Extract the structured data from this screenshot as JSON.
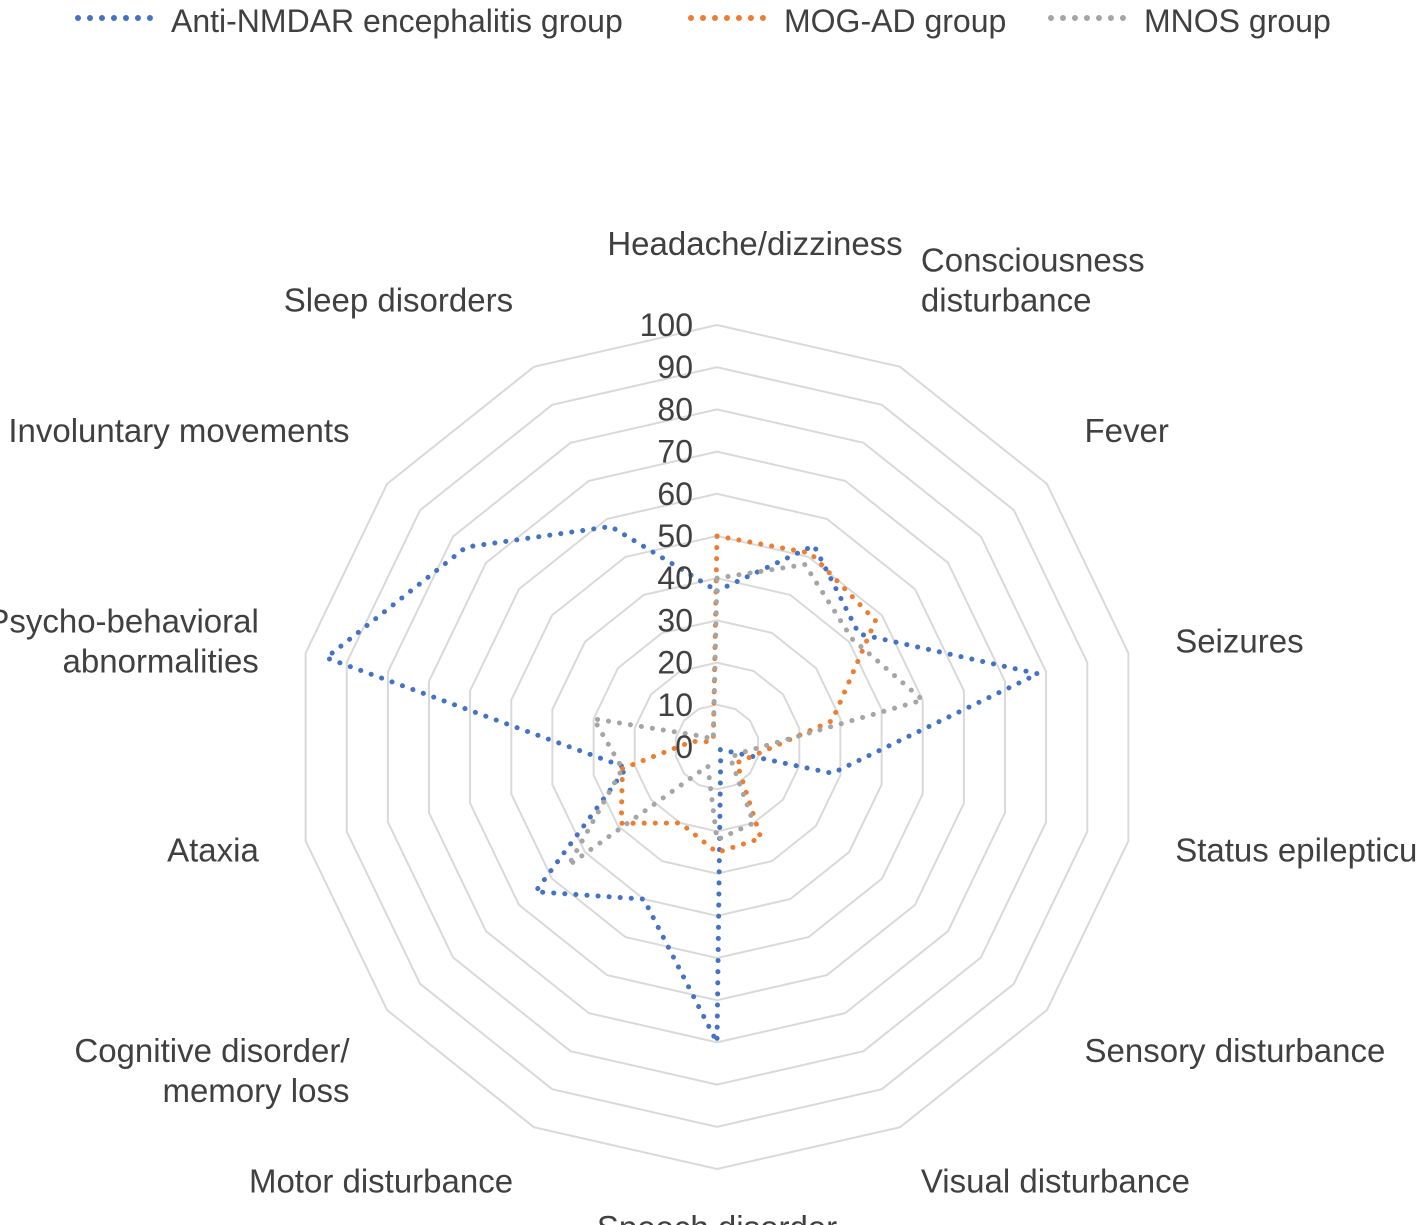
{
  "chart_data": {
    "type": "radar",
    "title": "",
    "axes": [
      "Headache/dizziness",
      "Consciousness disturbance",
      "Fever",
      "Seizures",
      "Status epilepticus",
      "Sensory disturbance",
      "Visual disturbance",
      "Speech disorder",
      "Motor disturbance",
      "Cognitive disorder/ memory loss",
      "Ataxia",
      "Psycho-behavioral abnormalities",
      "Involuntary movements",
      "Sleep disorders"
    ],
    "axis_label_lines": [
      [
        "Headache/dizziness"
      ],
      [
        "Consciousness",
        "disturbance"
      ],
      [
        "Fever"
      ],
      [
        "Seizures"
      ],
      [
        "Status epilepticus"
      ],
      [
        "Sensory disturbance"
      ],
      [
        "Visual disturbance"
      ],
      [
        "Speech disorder"
      ],
      [
        "Motor disturbance"
      ],
      [
        "Cognitive disorder/",
        "memory loss"
      ],
      [
        "Ataxia"
      ],
      [
        "Psycho-behavioral",
        "abnormalities"
      ],
      [
        "Involuntary movements"
      ],
      [
        "Sleep disorders"
      ]
    ],
    "radial_ticks": [
      "0",
      "10",
      "20",
      "30",
      "40",
      "50",
      "60",
      "70",
      "80",
      "90",
      "100"
    ],
    "rmin": 0,
    "rmax": 100,
    "grid": true,
    "legend_position": "top",
    "series": [
      {
        "name": "Anti-NMDAR encephalitis group",
        "color": "#4472c4",
        "values": [
          37,
          53,
          43,
          78,
          28,
          1,
          2,
          70,
          40,
          55,
          22,
          95,
          76,
          58
        ]
      },
      {
        "name": "MOG-AD group",
        "color": "#ed7d31",
        "values": [
          50,
          51,
          48,
          28,
          9,
          6,
          24,
          25,
          20,
          29,
          23,
          6,
          2,
          2
        ]
      },
      {
        "name": "MNOS group",
        "color": "#a5a5a5",
        "values": [
          40,
          48,
          41,
          50,
          6,
          4,
          20,
          22,
          5,
          45,
          23,
          30,
          4,
          2
        ]
      }
    ]
  }
}
